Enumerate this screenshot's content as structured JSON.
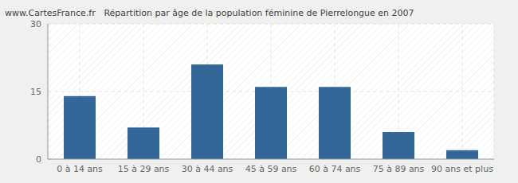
{
  "chart_data": {
    "type": "bar",
    "title": "Répartition par âge de la population féminine de Pierrelongue en 2007",
    "source": "www.CartesFrance.fr",
    "categories": [
      "0 à 14 ans",
      "15 à 29 ans",
      "30 à 44 ans",
      "45 à 59 ans",
      "60 à 74 ans",
      "75 à 89 ans",
      "90 ans et plus"
    ],
    "values": [
      14,
      7,
      21,
      16,
      16,
      6,
      2
    ],
    "color": "#336699",
    "ylim": [
      0,
      30
    ],
    "yticks": [
      0,
      15,
      30
    ],
    "grid": true
  }
}
